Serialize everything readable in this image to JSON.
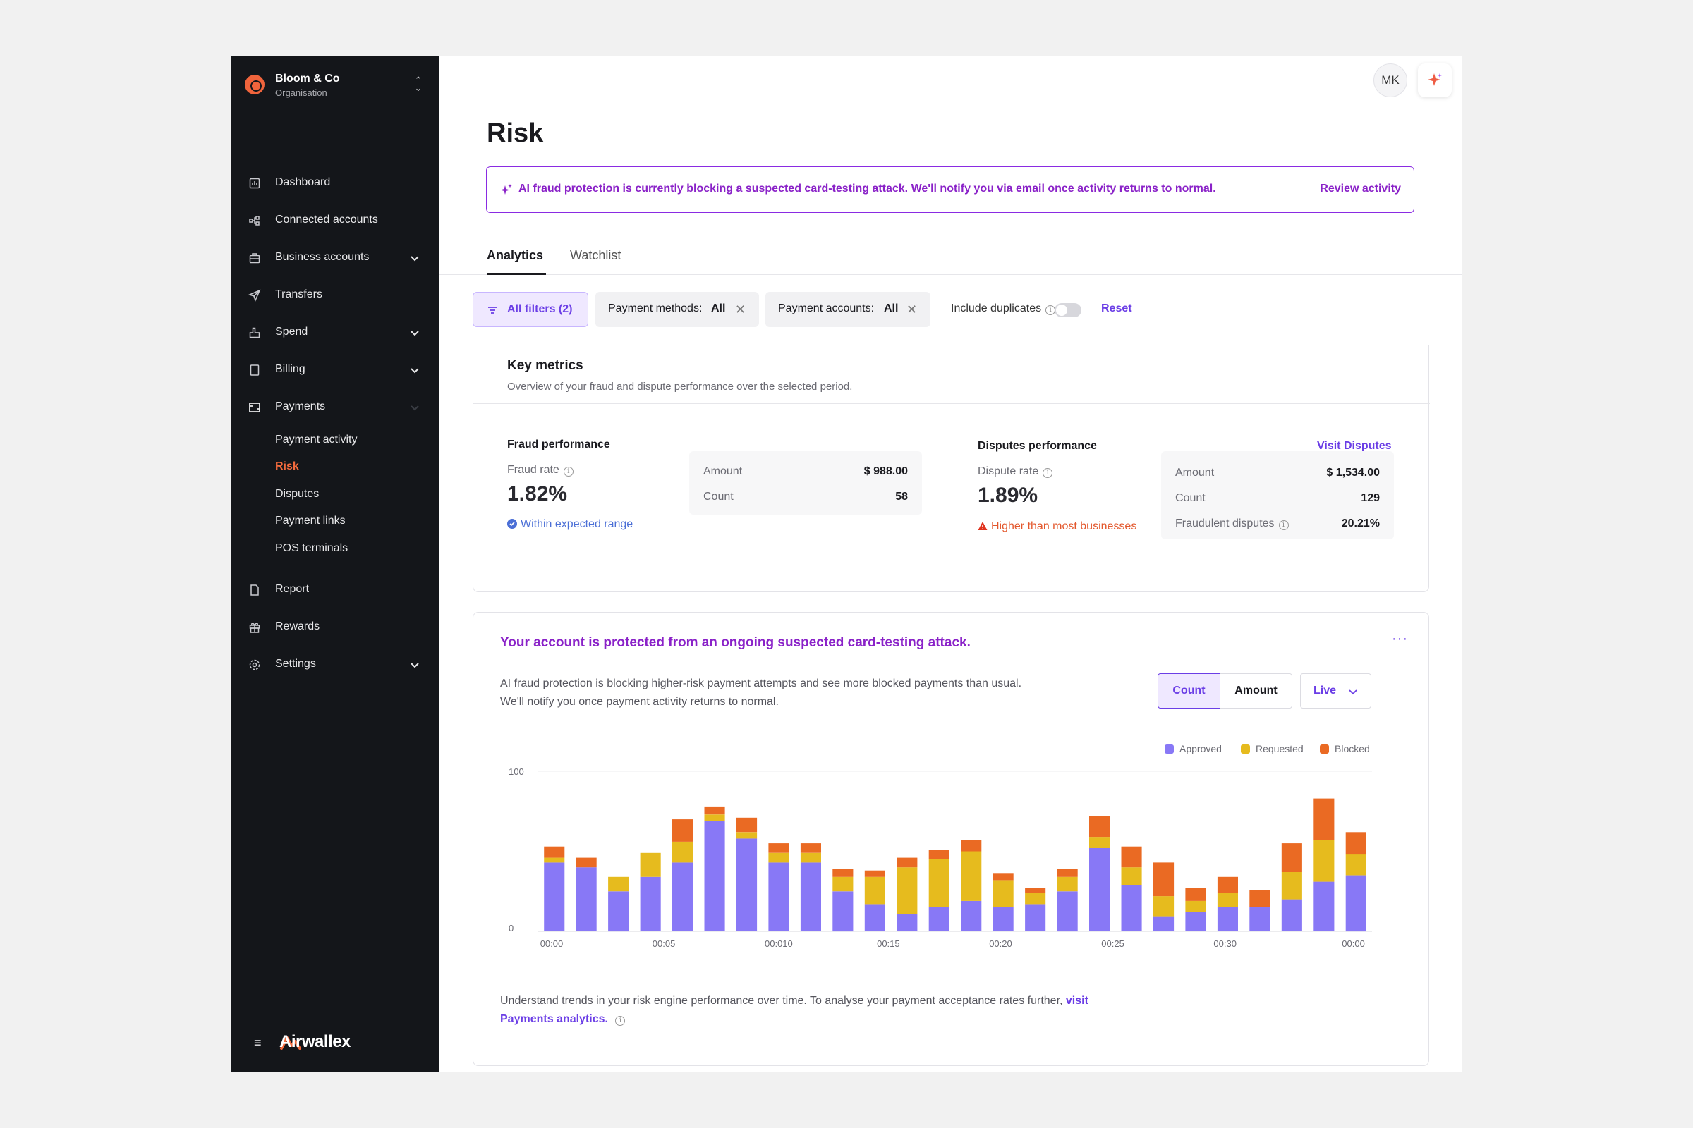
{
  "org": {
    "name": "Bloom & Co",
    "subtitle": "Organisation"
  },
  "nav": {
    "items": [
      {
        "label": "Dashboard",
        "icon": "dashboard-icon"
      },
      {
        "label": "Connected accounts",
        "icon": "connected-accounts-icon"
      },
      {
        "label": "Business accounts",
        "icon": "business-accounts-icon"
      },
      {
        "label": "Transfers",
        "icon": "transfers-icon"
      },
      {
        "label": "Spend",
        "icon": "spend-icon"
      },
      {
        "label": "Billing",
        "icon": "billing-icon"
      },
      {
        "label": "Payments",
        "icon": "payments-icon"
      }
    ],
    "payments_sub": [
      "Payment activity",
      "Risk",
      "Disputes",
      "Payment links",
      "POS terminals"
    ],
    "bottom_items": [
      {
        "label": "Report",
        "icon": "report-icon"
      },
      {
        "label": "Rewards",
        "icon": "rewards-icon"
      },
      {
        "label": "Settings",
        "icon": "settings-icon"
      }
    ],
    "active": "Risk"
  },
  "brand": "Airwallex",
  "header": {
    "avatar_initials": "MK"
  },
  "page": {
    "title": "Risk"
  },
  "alert": {
    "text": "AI fraud protection is currently blocking a suspected card-testing attack. We'll notify you via email once activity returns to normal.",
    "link": "Review activity"
  },
  "tabs": [
    {
      "label": "Analytics"
    },
    {
      "label": "Watchlist"
    }
  ],
  "filters": {
    "all": "All filters (2)",
    "methods_label": "Payment methods:",
    "methods_value": "All",
    "accounts_label": "Payment accounts:",
    "accounts_value": "All",
    "duplicates_label": "Include duplicates",
    "reset": "Reset"
  },
  "key_metrics": {
    "title": "Key metrics",
    "subtitle": "Overview of your fraud and dispute performance over the selected period.",
    "fraud": {
      "title": "Fraud performance",
      "rate_label": "Fraud rate",
      "rate": "1.82%",
      "note": "Within expected range",
      "stats": [
        {
          "k": "Amount",
          "v": "$ 988.00"
        },
        {
          "k": "Count",
          "v": "58"
        }
      ]
    },
    "disputes": {
      "title": "Disputes performance",
      "link": "Visit Disputes",
      "rate_label": "Dispute rate",
      "rate": "1.89%",
      "note": "Higher than most businesses",
      "stats": [
        {
          "k": "Amount",
          "v": "$ 1,534.00"
        },
        {
          "k": "Count",
          "v": "129"
        },
        {
          "k": "Fraudulent disputes",
          "v": "20.21%"
        }
      ]
    }
  },
  "attack": {
    "title": "Your account is protected from an ongoing suspected card-testing attack.",
    "desc_line1": "AI fraud protection is blocking higher-risk payment attempts and see more blocked payments than usual.",
    "desc_line2": "We'll notify you once payment activity returns to normal.",
    "toggle": {
      "count": "Count",
      "amount": "Amount",
      "active": "Count"
    },
    "range": "Live",
    "foot_text": "Understand trends in your risk engine performance over time. To analyse your payment acceptance rates further,",
    "foot_link": "visit Payments analytics."
  },
  "colors": {
    "approved": "#8878f6",
    "requested": "#e6bb1e",
    "blocked": "#ea6a23",
    "accent": "#6b3ee6",
    "alert": "#8a22c8"
  },
  "chart_data": {
    "type": "bar",
    "stacked": true,
    "ylim": [
      0,
      100
    ],
    "yticks": [
      "100",
      "0"
    ],
    "xticks": [
      "00:00",
      "00:05",
      "00:010",
      "00:15",
      "00:20",
      "00:25",
      "00:30",
      "00:00"
    ],
    "series": [
      {
        "name": "Approved",
        "values": [
          43,
          40,
          25,
          34,
          43,
          69,
          58,
          43,
          43,
          25,
          17,
          11,
          15,
          19,
          15,
          17,
          25,
          52,
          29,
          9,
          12,
          15,
          15,
          20,
          31,
          35
        ]
      },
      {
        "name": "Requested",
        "values": [
          3,
          0,
          9,
          15,
          13,
          4,
          4,
          6,
          6,
          9,
          17,
          29,
          30,
          31,
          17,
          7,
          9,
          7,
          11,
          13,
          7,
          9,
          0,
          17,
          26,
          13
        ]
      },
      {
        "name": "Blocked",
        "values": [
          7,
          6,
          0,
          0,
          14,
          5,
          9,
          6,
          6,
          5,
          4,
          6,
          6,
          7,
          4,
          3,
          5,
          13,
          13,
          21,
          8,
          10,
          11,
          18,
          26,
          14
        ]
      }
    ]
  }
}
